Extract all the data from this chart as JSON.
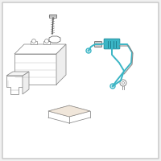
{
  "bg_color": "#ffffff",
  "border_color": "#cccccc",
  "line_color": "#888888",
  "dark_line": "#555555",
  "highlight_color": "#3ab5c5",
  "fig_bg": "#f0f0f0"
}
